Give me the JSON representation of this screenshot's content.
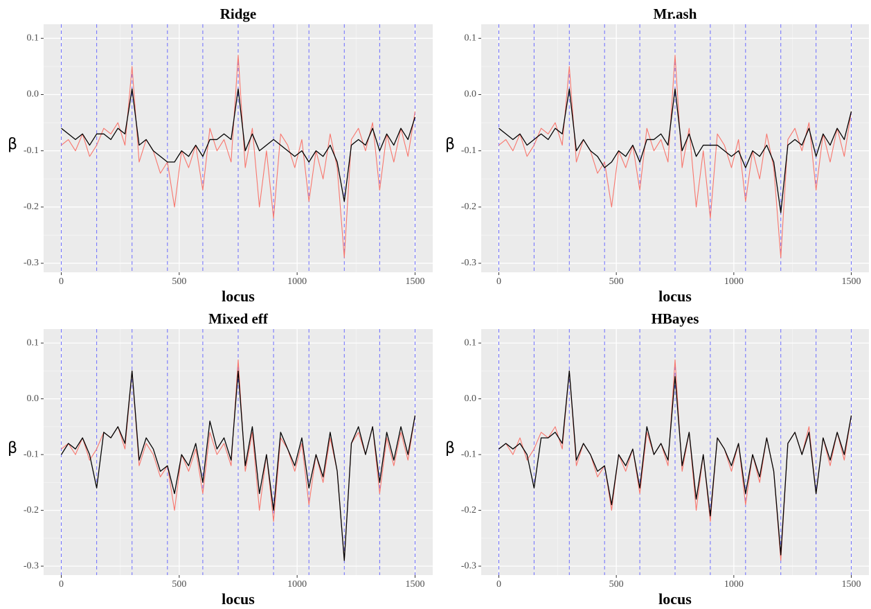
{
  "chart_data": [
    {
      "type": "line",
      "title": "Ridge",
      "x_label": "locus",
      "y_label": "β",
      "x": [
        0,
        30,
        60,
        90,
        120,
        150,
        180,
        210,
        240,
        270,
        300,
        330,
        360,
        390,
        420,
        450,
        480,
        510,
        540,
        570,
        600,
        630,
        660,
        690,
        720,
        750,
        780,
        810,
        840,
        870,
        900,
        930,
        960,
        990,
        1020,
        1050,
        1080,
        1110,
        1140,
        1170,
        1200,
        1230,
        1260,
        1290,
        1320,
        1350,
        1380,
        1410,
        1440,
        1470,
        1500
      ],
      "series": [
        {
          "color": "#f8766d",
          "values": [
            -0.09,
            -0.08,
            -0.1,
            -0.07,
            -0.11,
            -0.09,
            -0.06,
            -0.07,
            -0.05,
            -0.09,
            0.05,
            -0.12,
            -0.08,
            -0.1,
            -0.14,
            -0.12,
            -0.2,
            -0.1,
            -0.13,
            -0.09,
            -0.17,
            -0.06,
            -0.1,
            -0.08,
            -0.12,
            0.07,
            -0.13,
            -0.06,
            -0.2,
            -0.1,
            -0.22,
            -0.07,
            -0.09,
            -0.13,
            -0.08,
            -0.19,
            -0.1,
            -0.15,
            -0.07,
            -0.13,
            -0.29,
            -0.08,
            -0.06,
            -0.1,
            -0.05,
            -0.17,
            -0.07,
            -0.12,
            -0.06,
            -0.11,
            -0.03
          ]
        },
        {
          "color": "#000000",
          "values": [
            -0.06,
            -0.07,
            -0.08,
            -0.07,
            -0.09,
            -0.07,
            -0.07,
            -0.08,
            -0.06,
            -0.07,
            0.01,
            -0.09,
            -0.08,
            -0.1,
            -0.11,
            -0.12,
            -0.12,
            -0.1,
            -0.11,
            -0.09,
            -0.11,
            -0.08,
            -0.08,
            -0.07,
            -0.08,
            0.01,
            -0.1,
            -0.07,
            -0.1,
            -0.09,
            -0.08,
            -0.09,
            -0.1,
            -0.11,
            -0.1,
            -0.12,
            -0.1,
            -0.11,
            -0.09,
            -0.12,
            -0.19,
            -0.09,
            -0.08,
            -0.09,
            -0.06,
            -0.1,
            -0.07,
            -0.09,
            -0.06,
            -0.08,
            -0.04
          ]
        }
      ],
      "vlines": [
        0,
        150,
        300,
        450,
        600,
        750,
        900,
        1050,
        1200,
        1350,
        1500
      ],
      "vline_color": "#6b6bff",
      "xlim": [
        -75,
        1575
      ],
      "ylim": [
        -0.316,
        0.125
      ],
      "xticks": [
        0,
        500,
        1000,
        1500
      ],
      "yticks": [
        0.1,
        {
          "value": 0,
          "label": "0.0"
        },
        -0.1,
        -0.2,
        -0.3
      ],
      "grid": true
    },
    {
      "type": "line",
      "title": "Mr.ash",
      "x_label": "locus",
      "y_label": "β",
      "x": [
        0,
        30,
        60,
        90,
        120,
        150,
        180,
        210,
        240,
        270,
        300,
        330,
        360,
        390,
        420,
        450,
        480,
        510,
        540,
        570,
        600,
        630,
        660,
        690,
        720,
        750,
        780,
        810,
        840,
        870,
        900,
        930,
        960,
        990,
        1020,
        1050,
        1080,
        1110,
        1140,
        1170,
        1200,
        1230,
        1260,
        1290,
        1320,
        1350,
        1380,
        1410,
        1440,
        1470,
        1500
      ],
      "series": [
        {
          "color": "#f8766d",
          "values": [
            -0.09,
            -0.08,
            -0.1,
            -0.07,
            -0.11,
            -0.09,
            -0.06,
            -0.07,
            -0.05,
            -0.09,
            0.05,
            -0.12,
            -0.08,
            -0.1,
            -0.14,
            -0.12,
            -0.2,
            -0.1,
            -0.13,
            -0.09,
            -0.17,
            -0.06,
            -0.1,
            -0.08,
            -0.12,
            0.07,
            -0.13,
            -0.06,
            -0.2,
            -0.1,
            -0.22,
            -0.07,
            -0.09,
            -0.13,
            -0.08,
            -0.19,
            -0.1,
            -0.15,
            -0.07,
            -0.13,
            -0.29,
            -0.08,
            -0.06,
            -0.1,
            -0.05,
            -0.17,
            -0.07,
            -0.12,
            -0.06,
            -0.11,
            -0.03
          ]
        },
        {
          "color": "#000000",
          "values": [
            -0.06,
            -0.07,
            -0.08,
            -0.07,
            -0.09,
            -0.08,
            -0.07,
            -0.08,
            -0.06,
            -0.07,
            0.01,
            -0.1,
            -0.08,
            -0.1,
            -0.11,
            -0.13,
            -0.12,
            -0.1,
            -0.11,
            -0.09,
            -0.12,
            -0.08,
            -0.08,
            -0.07,
            -0.09,
            0.01,
            -0.1,
            -0.07,
            -0.11,
            -0.09,
            -0.09,
            -0.09,
            -0.1,
            -0.11,
            -0.1,
            -0.13,
            -0.1,
            -0.11,
            -0.09,
            -0.12,
            -0.21,
            -0.09,
            -0.08,
            -0.09,
            -0.06,
            -0.11,
            -0.07,
            -0.09,
            -0.06,
            -0.08,
            -0.03
          ]
        }
      ],
      "vlines": [
        0,
        150,
        300,
        450,
        600,
        750,
        900,
        1050,
        1200,
        1350,
        1500
      ],
      "vline_color": "#6b6bff",
      "xlim": [
        -75,
        1575
      ],
      "ylim": [
        -0.316,
        0.125
      ],
      "xticks": [
        0,
        500,
        1000,
        1500
      ],
      "yticks": [
        0.1,
        {
          "value": 0,
          "label": "0.0"
        },
        -0.1,
        -0.2,
        -0.3
      ],
      "grid": true
    },
    {
      "type": "line",
      "title": "Mixed eff",
      "x_label": "locus",
      "y_label": "β",
      "x": [
        0,
        30,
        60,
        90,
        120,
        150,
        180,
        210,
        240,
        270,
        300,
        330,
        360,
        390,
        420,
        450,
        480,
        510,
        540,
        570,
        600,
        630,
        660,
        690,
        720,
        750,
        780,
        810,
        840,
        870,
        900,
        930,
        960,
        990,
        1020,
        1050,
        1080,
        1110,
        1140,
        1170,
        1200,
        1230,
        1260,
        1290,
        1320,
        1350,
        1380,
        1410,
        1440,
        1470,
        1500
      ],
      "series": [
        {
          "color": "#f8766d",
          "values": [
            -0.09,
            -0.08,
            -0.1,
            -0.07,
            -0.11,
            -0.09,
            -0.06,
            -0.07,
            -0.05,
            -0.09,
            0.05,
            -0.12,
            -0.08,
            -0.1,
            -0.14,
            -0.12,
            -0.2,
            -0.1,
            -0.13,
            -0.09,
            -0.17,
            -0.06,
            -0.1,
            -0.08,
            -0.12,
            0.07,
            -0.13,
            -0.06,
            -0.2,
            -0.1,
            -0.22,
            -0.07,
            -0.09,
            -0.13,
            -0.08,
            -0.19,
            -0.1,
            -0.15,
            -0.07,
            -0.13,
            -0.29,
            -0.08,
            -0.06,
            -0.1,
            -0.05,
            -0.17,
            -0.07,
            -0.12,
            -0.06,
            -0.11,
            -0.03
          ]
        },
        {
          "color": "#000000",
          "values": [
            -0.1,
            -0.08,
            -0.09,
            -0.07,
            -0.1,
            -0.16,
            -0.06,
            -0.07,
            -0.05,
            -0.08,
            0.05,
            -0.11,
            -0.07,
            -0.09,
            -0.13,
            -0.12,
            -0.17,
            -0.1,
            -0.12,
            -0.08,
            -0.15,
            -0.04,
            -0.09,
            -0.07,
            -0.11,
            0.05,
            -0.12,
            -0.05,
            -0.17,
            -0.1,
            -0.2,
            -0.06,
            -0.09,
            -0.12,
            -0.07,
            -0.16,
            -0.1,
            -0.14,
            -0.06,
            -0.13,
            -0.29,
            -0.08,
            -0.05,
            -0.1,
            -0.05,
            -0.15,
            -0.06,
            -0.11,
            -0.05,
            -0.1,
            -0.03
          ]
        }
      ],
      "vlines": [
        0,
        150,
        300,
        450,
        600,
        750,
        900,
        1050,
        1200,
        1350,
        1500
      ],
      "vline_color": "#6b6bff",
      "xlim": [
        -75,
        1575
      ],
      "ylim": [
        -0.316,
        0.125
      ],
      "xticks": [
        0,
        500,
        1000,
        1500
      ],
      "yticks": [
        0.1,
        {
          "value": 0,
          "label": "0.0"
        },
        -0.1,
        -0.2,
        -0.3
      ],
      "grid": true
    },
    {
      "type": "line",
      "title": "HBayes",
      "x_label": "locus",
      "y_label": "β",
      "x": [
        0,
        30,
        60,
        90,
        120,
        150,
        180,
        210,
        240,
        270,
        300,
        330,
        360,
        390,
        420,
        450,
        480,
        510,
        540,
        570,
        600,
        630,
        660,
        690,
        720,
        750,
        780,
        810,
        840,
        870,
        900,
        930,
        960,
        990,
        1020,
        1050,
        1080,
        1110,
        1140,
        1170,
        1200,
        1230,
        1260,
        1290,
        1320,
        1350,
        1380,
        1410,
        1440,
        1470,
        1500
      ],
      "series": [
        {
          "color": "#f8766d",
          "values": [
            -0.09,
            -0.08,
            -0.1,
            -0.07,
            -0.11,
            -0.09,
            -0.06,
            -0.07,
            -0.05,
            -0.09,
            0.05,
            -0.12,
            -0.08,
            -0.1,
            -0.14,
            -0.12,
            -0.2,
            -0.1,
            -0.13,
            -0.09,
            -0.17,
            -0.06,
            -0.1,
            -0.08,
            -0.12,
            0.07,
            -0.13,
            -0.06,
            -0.2,
            -0.1,
            -0.22,
            -0.07,
            -0.09,
            -0.13,
            -0.08,
            -0.19,
            -0.1,
            -0.15,
            -0.07,
            -0.13,
            -0.29,
            -0.08,
            -0.06,
            -0.1,
            -0.05,
            -0.17,
            -0.07,
            -0.12,
            -0.06,
            -0.11,
            -0.03
          ]
        },
        {
          "color": "#000000",
          "values": [
            -0.09,
            -0.08,
            -0.09,
            -0.08,
            -0.1,
            -0.16,
            -0.07,
            -0.07,
            -0.06,
            -0.08,
            0.05,
            -0.11,
            -0.08,
            -0.1,
            -0.13,
            -0.12,
            -0.19,
            -0.1,
            -0.12,
            -0.09,
            -0.16,
            -0.05,
            -0.1,
            -0.08,
            -0.11,
            0.04,
            -0.12,
            -0.06,
            -0.18,
            -0.1,
            -0.21,
            -0.07,
            -0.09,
            -0.12,
            -0.08,
            -0.17,
            -0.1,
            -0.14,
            -0.07,
            -0.13,
            -0.28,
            -0.08,
            -0.06,
            -0.1,
            -0.06,
            -0.17,
            -0.07,
            -0.11,
            -0.06,
            -0.1,
            -0.03
          ]
        }
      ],
      "vlines": [
        0,
        150,
        300,
        450,
        600,
        750,
        900,
        1050,
        1200,
        1350,
        1500
      ],
      "vline_color": "#6b6bff",
      "xlim": [
        -75,
        1575
      ],
      "ylim": [
        -0.316,
        0.125
      ],
      "xticks": [
        0,
        500,
        1000,
        1500
      ],
      "yticks": [
        0.1,
        {
          "value": 0,
          "label": "0.0"
        },
        -0.1,
        -0.2,
        -0.3
      ],
      "grid": true
    }
  ]
}
